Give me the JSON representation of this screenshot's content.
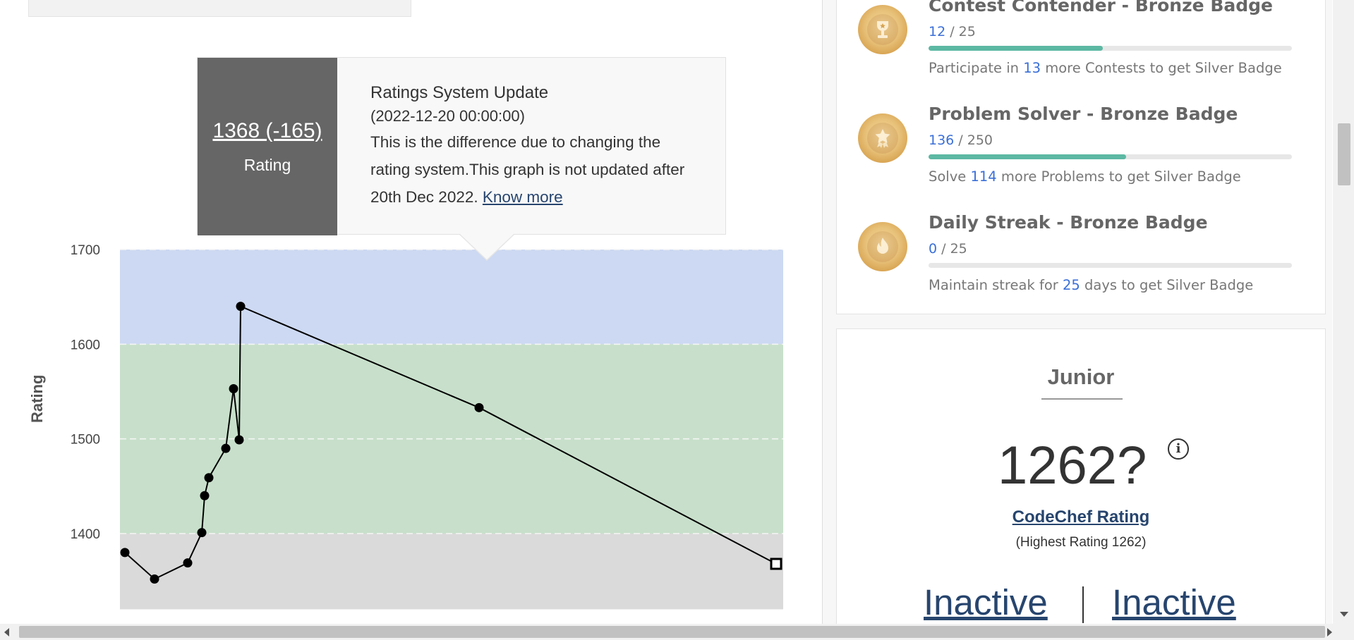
{
  "tooltip": {
    "value": "1368 (-165)",
    "value_label": "Rating",
    "title": "Ratings System Update",
    "date": "(2022-12-20 00:00:00)",
    "description": "This is the difference due to changing the rating system.This graph is not updated after 20th Dec 2022. ",
    "link": "Know more"
  },
  "chart_data": {
    "type": "line",
    "title": "",
    "xlabel": "",
    "ylabel": "Rating",
    "ylim": [
      1320,
      1705
    ],
    "yticks": [
      "1700",
      "1600",
      "1500",
      "1400"
    ],
    "bands": [
      {
        "from": 1600,
        "to": 1700,
        "color": "#cdd9f2"
      },
      {
        "from": 1400,
        "to": 1600,
        "color": "#c8e0cb"
      },
      {
        "from": 1320,
        "to": 1400,
        "color": "#dadada"
      }
    ],
    "series": [
      {
        "marker": "circle",
        "values": [
          1380,
          1352,
          1369,
          1401,
          1440,
          1459,
          1490,
          1553,
          1499,
          1640,
          1533,
          1368
        ]
      }
    ],
    "last_point_marker": "square"
  },
  "badges": [
    {
      "title": "Contest Contender - Bronze Badge",
      "current": "12",
      "total": " / 25",
      "progress": 0.48,
      "desc_before": "Participate in ",
      "desc_num": "13",
      "desc_after": " more Contests to get Silver Badge",
      "icon": "trophy-icon"
    },
    {
      "title": "Problem Solver - Bronze Badge",
      "current": "136",
      "total": " / 250",
      "progress": 0.544,
      "desc_before": "Solve ",
      "desc_num": "114",
      "desc_after": " more Problems to get Silver Badge",
      "icon": "star-badge-icon"
    },
    {
      "title": "Daily Streak - Bronze Badge",
      "current": "0",
      "total": " / 25",
      "progress": 0,
      "desc_before": "Maintain streak for ",
      "desc_num": "25",
      "desc_after": " days to get Silver Badge",
      "icon": "flame-icon"
    }
  ],
  "rating_card": {
    "division": "Junior",
    "rating": "1262?",
    "info_icon": "i",
    "rating_link": "CodeChef Rating",
    "highest": "(Highest Rating 1262)",
    "global_rank": "Inactive",
    "country_rank": "Inactive"
  },
  "colors": {
    "link": "#27456e",
    "accent_blue": "#3a6fd8",
    "progress_green": "#5cb8a3"
  }
}
